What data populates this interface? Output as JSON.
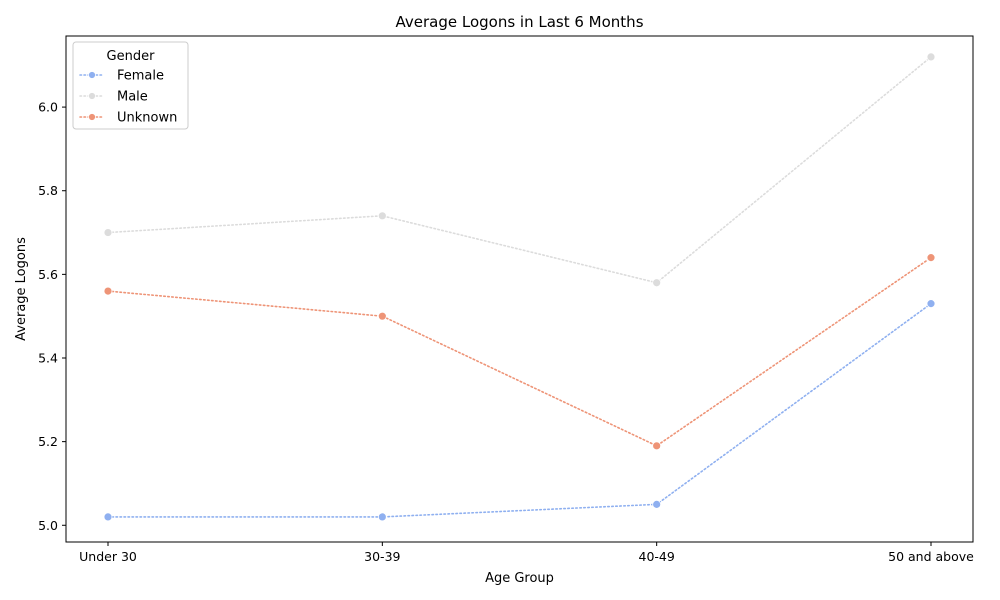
{
  "chart_data": {
    "type": "line",
    "title": "Average Logons in Last 6 Months",
    "xlabel": "Age Group",
    "ylabel": "Average Logons",
    "categories": [
      "Under 30",
      "30-39",
      "40-49",
      "50 and above"
    ],
    "ylim": [
      4.96,
      6.17
    ],
    "yticks": [
      5.0,
      5.2,
      5.4,
      5.6,
      5.8,
      6.0
    ],
    "ytick_labels": [
      "5.0",
      "5.2",
      "5.4",
      "5.6",
      "5.8",
      "6.0"
    ],
    "grid": false,
    "line_style": "dotted",
    "marker": "circle",
    "legend": {
      "title": "Gender",
      "placement": "top-left"
    },
    "series": [
      {
        "name": "Female",
        "color": "#8fb0f0",
        "values": [
          5.02,
          5.02,
          5.05,
          5.53
        ]
      },
      {
        "name": "Male",
        "color": "#dcdcdc",
        "values": [
          5.7,
          5.74,
          5.58,
          6.12
        ]
      },
      {
        "name": "Unknown",
        "color": "#ee9477",
        "values": [
          5.56,
          5.5,
          5.19,
          5.64
        ]
      }
    ]
  }
}
